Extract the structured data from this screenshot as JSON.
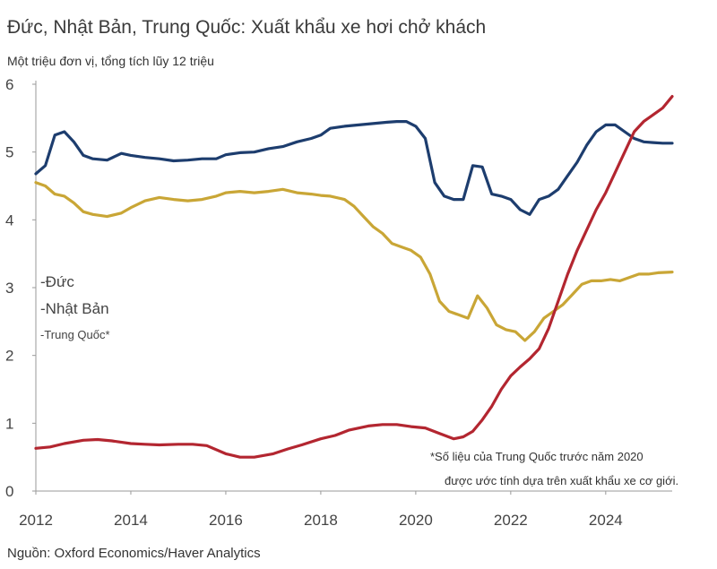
{
  "chart_data": {
    "type": "line",
    "title": "Đức, Nhật Bản, Trung Quốc: Xuất khẩu xe hơi chở khách",
    "ylabel": "Một triệu đơn vị, tổng tích lũy 12 triệu",
    "xlabel": "",
    "source": "Nguồn: Oxford Economics/Haver Analytics",
    "note_lines": [
      "*Số liệu của Trung Quốc trước năm 2020",
      "được ước tính dựa trên xuất khẩu xe cơ giới."
    ],
    "xlim": [
      2012,
      2025.4
    ],
    "ylim": [
      0,
      6
    ],
    "x_ticks": [
      "2012",
      "2014",
      "2016",
      "2018",
      "2020",
      "2022",
      "2024"
    ],
    "y_ticks": [
      "0",
      "1",
      "2",
      "3",
      "4",
      "5",
      "6"
    ],
    "series": [
      {
        "name": "-Đức",
        "color": "#1d3d6e",
        "x": [
          2012.0,
          2012.2,
          2012.4,
          2012.6,
          2012.8,
          2013.0,
          2013.2,
          2013.5,
          2013.8,
          2014.0,
          2014.3,
          2014.6,
          2014.9,
          2015.2,
          2015.5,
          2015.8,
          2016.0,
          2016.3,
          2016.6,
          2016.9,
          2017.2,
          2017.5,
          2017.8,
          2018.0,
          2018.2,
          2018.5,
          2018.8,
          2019.1,
          2019.4,
          2019.6,
          2019.8,
          2020.0,
          2020.2,
          2020.4,
          2020.6,
          2020.8,
          2021.0,
          2021.2,
          2021.4,
          2021.6,
          2021.8,
          2022.0,
          2022.2,
          2022.4,
          2022.6,
          2022.8,
          2023.0,
          2023.2,
          2023.4,
          2023.6,
          2023.8,
          2024.0,
          2024.2,
          2024.4,
          2024.6,
          2024.8,
          2025.0,
          2025.2,
          2025.4
        ],
        "values": [
          4.68,
          4.8,
          5.25,
          5.3,
          5.15,
          4.95,
          4.9,
          4.88,
          4.98,
          4.95,
          4.92,
          4.9,
          4.87,
          4.88,
          4.9,
          4.9,
          4.96,
          4.99,
          5.0,
          5.05,
          5.08,
          5.15,
          5.2,
          5.25,
          5.35,
          5.38,
          5.4,
          5.42,
          5.44,
          5.45,
          5.45,
          5.38,
          5.2,
          4.55,
          4.35,
          4.3,
          4.3,
          4.8,
          4.78,
          4.38,
          4.35,
          4.3,
          4.15,
          4.08,
          4.3,
          4.35,
          4.45,
          4.65,
          4.85,
          5.1,
          5.3,
          5.4,
          5.4,
          5.3,
          5.2,
          5.15,
          5.14,
          5.13,
          5.13
        ]
      },
      {
        "name": "-Nhật Bản",
        "color": "#c9a636",
        "x": [
          2012.0,
          2012.2,
          2012.4,
          2012.6,
          2012.8,
          2013.0,
          2013.2,
          2013.5,
          2013.8,
          2014.0,
          2014.3,
          2014.6,
          2014.9,
          2015.2,
          2015.5,
          2015.8,
          2016.0,
          2016.3,
          2016.6,
          2016.9,
          2017.2,
          2017.5,
          2017.8,
          2018.0,
          2018.2,
          2018.5,
          2018.7,
          2018.9,
          2019.1,
          2019.3,
          2019.5,
          2019.7,
          2019.9,
          2020.1,
          2020.3,
          2020.5,
          2020.7,
          2020.9,
          2021.1,
          2021.3,
          2021.5,
          2021.7,
          2021.9,
          2022.1,
          2022.3,
          2022.5,
          2022.7,
          2022.9,
          2023.1,
          2023.3,
          2023.5,
          2023.7,
          2023.9,
          2024.1,
          2024.3,
          2024.5,
          2024.7,
          2024.9,
          2025.1,
          2025.4
        ],
        "values": [
          4.55,
          4.5,
          4.38,
          4.35,
          4.25,
          4.12,
          4.08,
          4.05,
          4.1,
          4.18,
          4.28,
          4.33,
          4.3,
          4.28,
          4.3,
          4.35,
          4.4,
          4.42,
          4.4,
          4.42,
          4.45,
          4.4,
          4.38,
          4.36,
          4.35,
          4.3,
          4.2,
          4.05,
          3.9,
          3.8,
          3.65,
          3.6,
          3.55,
          3.45,
          3.2,
          2.8,
          2.65,
          2.6,
          2.55,
          2.88,
          2.7,
          2.45,
          2.38,
          2.35,
          2.22,
          2.35,
          2.55,
          2.65,
          2.75,
          2.9,
          3.05,
          3.1,
          3.1,
          3.12,
          3.1,
          3.15,
          3.2,
          3.2,
          3.22,
          3.23
        ]
      },
      {
        "name": "-Trung Quốc*",
        "color": "#b32630",
        "x": [
          2012.0,
          2012.3,
          2012.6,
          2013.0,
          2013.3,
          2013.6,
          2014.0,
          2014.3,
          2014.6,
          2015.0,
          2015.3,
          2015.6,
          2016.0,
          2016.3,
          2016.6,
          2017.0,
          2017.3,
          2017.6,
          2018.0,
          2018.3,
          2018.6,
          2019.0,
          2019.3,
          2019.6,
          2019.9,
          2020.2,
          2020.5,
          2020.8,
          2021.0,
          2021.2,
          2021.4,
          2021.6,
          2021.8,
          2022.0,
          2022.2,
          2022.4,
          2022.6,
          2022.8,
          2023.0,
          2023.2,
          2023.4,
          2023.6,
          2023.8,
          2024.0,
          2024.2,
          2024.4,
          2024.6,
          2024.8,
          2025.0,
          2025.2,
          2025.4
        ],
        "values": [
          0.63,
          0.65,
          0.7,
          0.75,
          0.76,
          0.74,
          0.7,
          0.69,
          0.68,
          0.69,
          0.69,
          0.67,
          0.55,
          0.5,
          0.5,
          0.55,
          0.62,
          0.68,
          0.77,
          0.82,
          0.9,
          0.96,
          0.98,
          0.98,
          0.95,
          0.93,
          0.85,
          0.77,
          0.8,
          0.88,
          1.05,
          1.25,
          1.5,
          1.7,
          1.83,
          1.95,
          2.1,
          2.4,
          2.8,
          3.2,
          3.55,
          3.85,
          4.15,
          4.4,
          4.7,
          5.0,
          5.3,
          5.45,
          5.55,
          5.65,
          5.82
        ]
      }
    ]
  },
  "legend_label_sizes": [
    17,
    17,
    13
  ]
}
